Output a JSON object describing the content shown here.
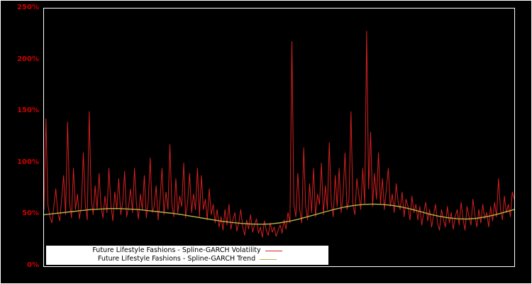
{
  "chart_data": {
    "type": "line",
    "title": "",
    "xlabel": "",
    "ylabel": "",
    "ylim": [
      0,
      250
    ],
    "grid": false,
    "background_color": "#000000",
    "frame_color": "#ffffff",
    "tick_label_color": "#cc0000",
    "y_ticks": [
      {
        "label": "0%",
        "value": 0
      },
      {
        "label": "50%",
        "value": 50
      },
      {
        "label": "100%",
        "value": 100
      },
      {
        "label": "150%",
        "value": 150
      },
      {
        "label": "200%",
        "value": 200
      },
      {
        "label": "250%",
        "value": 250
      }
    ],
    "legend": {
      "position": "bottom-inside",
      "background": "#ffffff",
      "entries": [
        {
          "label": "Future Lifestyle Fashions - Spline-GARCH Volatility",
          "color": "#d62020"
        },
        {
          "label": "Future Lifestyle Fashions - Spline-GARCH Trend",
          "color": "#b3b347"
        }
      ]
    },
    "series": [
      {
        "name": "Future Lifestyle Fashions - Spline-GARCH Volatility",
        "color": "#d62020",
        "stroke_width": 1,
        "unit": "%",
        "values": [
          55,
          143,
          60,
          48,
          42,
          58,
          75,
          52,
          44,
          66,
          88,
          50,
          140,
          62,
          47,
          95,
          55,
          70,
          46,
          58,
          110,
          60,
          45,
          150,
          65,
          50,
          78,
          55,
          90,
          58,
          47,
          68,
          52,
          95,
          60,
          44,
          72,
          55,
          85,
          50,
          62,
          92,
          48,
          58,
          75,
          52,
          95,
          60,
          46,
          70,
          55,
          88,
          47,
          63,
          105,
          52,
          58,
          78,
          45,
          65,
          95,
          50,
          72,
          55,
          118,
          60,
          48,
          85,
          52,
          68,
          58,
          100,
          47,
          62,
          90,
          52,
          70,
          55,
          95,
          48,
          88,
          55,
          65,
          45,
          75,
          50,
          60,
          42,
          55,
          38,
          48,
          35,
          55,
          40,
          60,
          36,
          45,
          52,
          34,
          42,
          55,
          38,
          30,
          45,
          36,
          50,
          33,
          40,
          46,
          32,
          38,
          28,
          44,
          35,
          30,
          42,
          33,
          38,
          29,
          35,
          40,
          32,
          45,
          36,
          52,
          42,
          218,
          60,
          48,
          90,
          55,
          42,
          115,
          58,
          45,
          80,
          52,
          95,
          48,
          70,
          60,
          100,
          50,
          78,
          55,
          120,
          62,
          48,
          88,
          58,
          95,
          52,
          70,
          110,
          55,
          65,
          150,
          60,
          50,
          85,
          70,
          55,
          95,
          60,
          228,
          75,
          130,
          58,
          90,
          65,
          110,
          60,
          85,
          55,
          75,
          95,
          58,
          70,
          52,
          80,
          62,
          55,
          72,
          48,
          65,
          58,
          45,
          68,
          52,
          60,
          45,
          58,
          40,
          52,
          62,
          44,
          55,
          38,
          50,
          60,
          42,
          35,
          55,
          45,
          38,
          58,
          42,
          52,
          36,
          48,
          55,
          40,
          62,
          45,
          35,
          58,
          48,
          40,
          65,
          50,
          38,
          55,
          42,
          60,
          46,
          52,
          38,
          58,
          44,
          62,
          48,
          85,
          55,
          45,
          68,
          52,
          60,
          48,
          72,
          65
        ]
      },
      {
        "name": "Future Lifestyle Fashions - Spline-GARCH Trend",
        "color": "#b3b347",
        "stroke_width": 1.4,
        "unit": "%",
        "values": [
          50,
          51,
          52,
          53,
          54,
          55,
          55.5,
          56,
          56,
          55.5,
          55,
          54,
          53,
          52,
          51,
          49.5,
          48,
          46.5,
          45,
          43.5,
          42.5,
          41.5,
          41,
          40.8,
          41,
          42,
          43.5,
          45.5,
          48,
          50.5,
          53,
          55.5,
          57.5,
          59,
          60,
          60.3,
          60,
          59,
          57.5,
          55.5,
          53,
          50.5,
          48.5,
          47,
          46,
          45.8,
          46.5,
          48,
          50,
          52.5,
          55
        ]
      }
    ]
  }
}
